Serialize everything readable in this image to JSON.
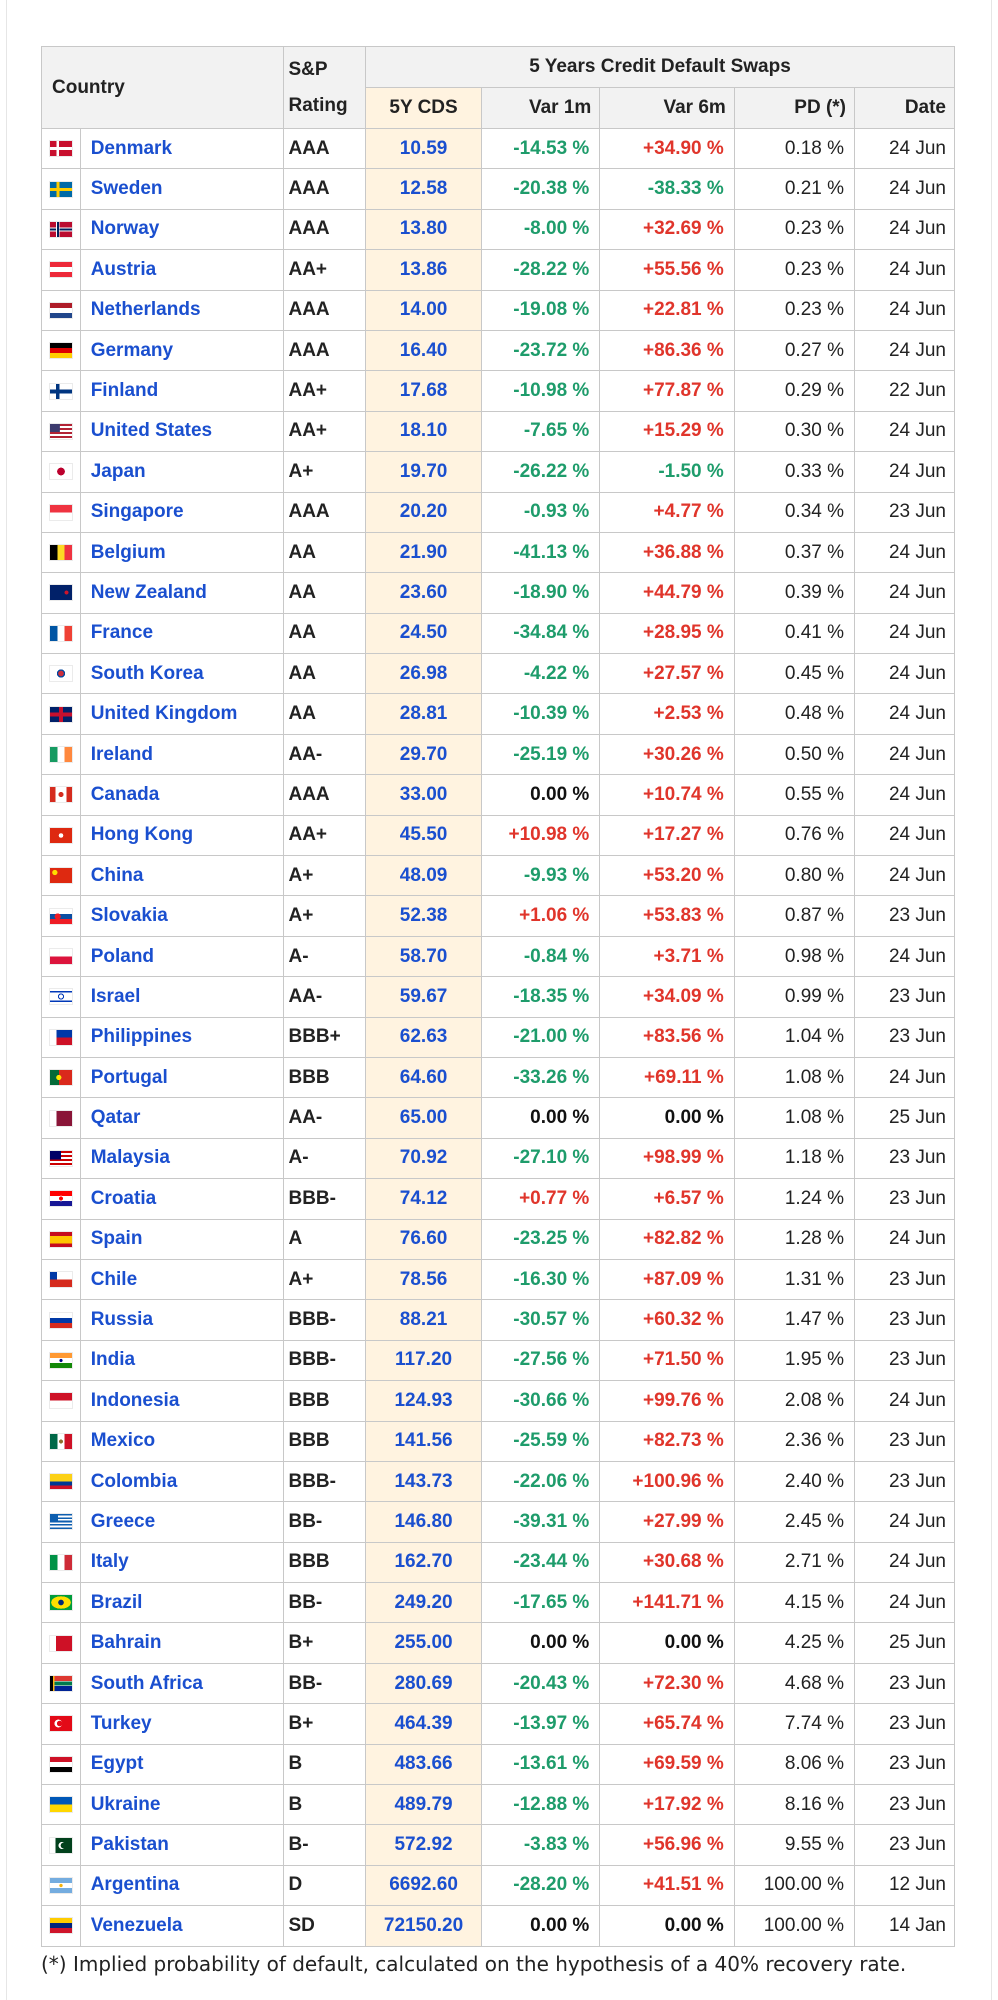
{
  "headers": {
    "country": "Country",
    "rating_line1": "S&P",
    "rating_line2": "Rating",
    "group": "5 Years Credit Default Swaps",
    "cds": "5Y CDS",
    "var1m": "Var 1m",
    "var6m": "Var 6m",
    "pd": "PD (*)",
    "date": "Date"
  },
  "rows": [
    {
      "country": "Denmark",
      "rating": "AAA",
      "cds": "10.59",
      "var1m": "-14.53 %",
      "var6m": "+34.90 %",
      "pd": "0.18 %",
      "date": "24 Jun",
      "flag": "linear-gradient(90deg,transparent 30%,#fff 30%,#fff 42%,transparent 42%),linear-gradient(#c8102e 40%,#fff 40%,#fff 60%,#c8102e 60%)"
    },
    {
      "country": "Sweden",
      "rating": "AAA",
      "cds": "12.58",
      "var1m": "-20.38 %",
      "var6m": "-38.33 %",
      "pd": "0.21 %",
      "date": "24 Jun",
      "flag": "linear-gradient(90deg,transparent 30%,#fecc00 30%,#fecc00 44%,transparent 44%),linear-gradient(#006aa7 40%,#fecc00 40%,#fecc00 60%,#006aa7 60%)"
    },
    {
      "country": "Norway",
      "rating": "AAA",
      "cds": "13.80",
      "var1m": "-8.00 %",
      "var6m": "+32.69 %",
      "pd": "0.23 %",
      "date": "24 Jun",
      "flag": "linear-gradient(90deg,transparent 28%,#fff 28%,#fff 32%,#00205b 32%,#00205b 40%,#fff 40%,#fff 44%,transparent 44%),linear-gradient(#ba0c2f 36%,#fff 36%,#fff 42%,#00205b 42%,#00205b 58%,#fff 58%,#fff 64%,#ba0c2f 64%)"
    },
    {
      "country": "Austria",
      "rating": "AA+",
      "cds": "13.86",
      "var1m": "-28.22 %",
      "var6m": "+55.56 %",
      "pd": "0.23 %",
      "date": "24 Jun",
      "flag": "linear-gradient(#ed2939 33%,#fff 33%,#fff 67%,#ed2939 67%)"
    },
    {
      "country": "Netherlands",
      "rating": "AAA",
      "cds": "14.00",
      "var1m": "-19.08 %",
      "var6m": "+22.81 %",
      "pd": "0.23 %",
      "date": "24 Jun",
      "flag": "linear-gradient(#ae1c28 33%,#fff 33%,#fff 67%,#21468b 67%)"
    },
    {
      "country": "Germany",
      "rating": "AAA",
      "cds": "16.40",
      "var1m": "-23.72 %",
      "var6m": "+86.36 %",
      "pd": "0.27 %",
      "date": "24 Jun",
      "flag": "linear-gradient(#000 33%,#dd0000 33%,#dd0000 67%,#ffce00 67%)"
    },
    {
      "country": "Finland",
      "rating": "AA+",
      "cds": "17.68",
      "var1m": "-10.98 %",
      "var6m": "+77.87 %",
      "pd": "0.29 %",
      "date": "22 Jun",
      "flag": "linear-gradient(90deg,transparent 28%,#003580 28%,#003580 44%,transparent 44%),linear-gradient(#fff 38%,#003580 38%,#003580 62%,#fff 62%)"
    },
    {
      "country": "United States",
      "rating": "AA+",
      "cds": "18.10",
      "var1m": "-7.65 %",
      "var6m": "+15.29 %",
      "pd": "0.30 %",
      "date": "24 Jun",
      "flag": "linear-gradient(#3c3b6e 0,#3c3b6e 100%) 0 0/45% 54% no-repeat,repeating-linear-gradient(#b22234 0,#b22234 2px,#fff 2px,#fff 4px)"
    },
    {
      "country": "Japan",
      "rating": "A+",
      "cds": "19.70",
      "var1m": "-26.22 %",
      "var6m": "-1.50 %",
      "pd": "0.33 %",
      "date": "24 Jun",
      "flag": "radial-gradient(circle,#bc002d 0,#bc002d 28%,#fff 30%)"
    },
    {
      "country": "Singapore",
      "rating": "AAA",
      "cds": "20.20",
      "var1m": "-0.93 %",
      "var6m": "+4.77 %",
      "pd": "0.34 %",
      "date": "23 Jun",
      "flag": "linear-gradient(#ef3340 50%,#fff 50%)"
    },
    {
      "country": "Belgium",
      "rating": "AA",
      "cds": "21.90",
      "var1m": "-41.13 %",
      "var6m": "+36.88 %",
      "pd": "0.37 %",
      "date": "24 Jun",
      "flag": "linear-gradient(90deg,#000 33%,#fdda24 33%,#fdda24 67%,#ef3340 67%)"
    },
    {
      "country": "New Zealand",
      "rating": "AA",
      "cds": "23.60",
      "var1m": "-18.90 %",
      "var6m": "+44.79 %",
      "pd": "0.39 %",
      "date": "24 Jun",
      "flag": "radial-gradient(circle at 75% 50%,#cc142b 0,#cc142b 10%,transparent 12%),linear-gradient(#012169,#012169)"
    },
    {
      "country": "France",
      "rating": "AA",
      "cds": "24.50",
      "var1m": "-34.84 %",
      "var6m": "+28.95 %",
      "pd": "0.41 %",
      "date": "24 Jun",
      "flag": "linear-gradient(90deg,#0055a4 33%,#fff 33%,#fff 67%,#ef4135 67%)"
    },
    {
      "country": "South Korea",
      "rating": "AA",
      "cds": "26.98",
      "var1m": "-4.22 %",
      "var6m": "+27.57 %",
      "pd": "0.45 %",
      "date": "24 Jun",
      "flag": "radial-gradient(circle,#cd2e3a 0,#cd2e3a 20%,#0047a0 22%,#0047a0 30%,#fff 32%)"
    },
    {
      "country": "United Kingdom",
      "rating": "AA",
      "cds": "28.81",
      "var1m": "-10.39 %",
      "var6m": "+2.53 %",
      "pd": "0.48 %",
      "date": "24 Jun",
      "flag": "linear-gradient(90deg,transparent 42%,#c8102e 42%,#c8102e 58%,transparent 58%),linear-gradient(#012169 38%,#c8102e 38%,#c8102e 62%,#012169 62%)"
    },
    {
      "country": "Ireland",
      "rating": "AA-",
      "cds": "29.70",
      "var1m": "-25.19 %",
      "var6m": "+30.26 %",
      "pd": "0.50 %",
      "date": "24 Jun",
      "flag": "linear-gradient(90deg,#169b62 33%,#fff 33%,#fff 67%,#ff883e 67%)"
    },
    {
      "country": "Canada",
      "rating": "AAA",
      "cds": "33.00",
      "var1m": "0.00 %",
      "var6m": "+10.74 %",
      "pd": "0.55 %",
      "date": "24 Jun",
      "flag": "radial-gradient(circle,#d52b1e 0,#d52b1e 18%,transparent 20%),linear-gradient(90deg,#d52b1e 25%,#fff 25%,#fff 75%,#d52b1e 75%)"
    },
    {
      "country": "Hong Kong",
      "rating": "AA+",
      "cds": "45.50",
      "var1m": "+10.98 %",
      "var6m": "+17.27 %",
      "pd": "0.76 %",
      "date": "24 Jun",
      "flag": "radial-gradient(circle,#fff 0,#fff 16%,#de2910 18%)"
    },
    {
      "country": "China",
      "rating": "A+",
      "cds": "48.09",
      "var1m": "-9.93 %",
      "var6m": "+53.20 %",
      "pd": "0.80 %",
      "date": "24 Jun",
      "flag": "radial-gradient(circle at 22% 30%,#ffde00 0,#ffde00 12%,#de2910 14%)"
    },
    {
      "country": "Slovakia",
      "rating": "A+",
      "cds": "52.38",
      "var1m": "+1.06 %",
      "var6m": "+53.83 %",
      "pd": "0.87 %",
      "date": "23 Jun",
      "flag": "radial-gradient(circle at 35% 50%,#ee1c25 0,#ee1c25 18%,transparent 20%),linear-gradient(#fff 33%,#0b4ea2 33%,#0b4ea2 67%,#ee1c25 67%)"
    },
    {
      "country": "Poland",
      "rating": "A-",
      "cds": "58.70",
      "var1m": "-0.84 %",
      "var6m": "+3.71 %",
      "pd": "0.98 %",
      "date": "24 Jun",
      "flag": "linear-gradient(#fff 50%,#dc143c 50%)"
    },
    {
      "country": "Israel",
      "rating": "AA-",
      "cds": "59.67",
      "var1m": "-18.35 %",
      "var6m": "+34.09 %",
      "pd": "0.99 %",
      "date": "23 Jun",
      "flag": "radial-gradient(circle,transparent 0,transparent 14%,#0038b8 16%,#0038b8 22%,transparent 24%),linear-gradient(#fff 12%,#0038b8 12%,#0038b8 24%,#fff 24%,#fff 76%,#0038b8 76%,#0038b8 88%,#fff 88%)"
    },
    {
      "country": "Philippines",
      "rating": "BBB+",
      "cds": "62.63",
      "var1m": "-21.00 %",
      "var6m": "+83.56 %",
      "pd": "1.04 %",
      "date": "23 Jun",
      "flag": "linear-gradient(90deg,#fff 0,#fff 30%,transparent 30%),linear-gradient(#0038a8 50%,#ce1126 50%)"
    },
    {
      "country": "Portugal",
      "rating": "BBB",
      "cds": "64.60",
      "var1m": "-33.26 %",
      "var6m": "+69.11 %",
      "pd": "1.08 %",
      "date": "24 Jun",
      "flag": "radial-gradient(circle at 40% 50%,#ffe900 0,#ffe900 16%,transparent 18%),linear-gradient(90deg,#046a38 40%,#da291c 40%)"
    },
    {
      "country": "Qatar",
      "rating": "AA-",
      "cds": "65.00",
      "var1m": "0.00 %",
      "var6m": "0.00 %",
      "pd": "1.08 %",
      "date": "25 Jun",
      "flag": "linear-gradient(90deg,#fff 30%,#8a1538 30%)"
    },
    {
      "country": "Malaysia",
      "rating": "A-",
      "cds": "70.92",
      "var1m": "-27.10 %",
      "var6m": "+98.99 %",
      "pd": "1.18 %",
      "date": "23 Jun",
      "flag": "linear-gradient(#010066 0,#010066 100%) 0 0/50% 57% no-repeat,repeating-linear-gradient(#cc0001 0,#cc0001 2px,#fff 2px,#fff 4px)"
    },
    {
      "country": "Croatia",
      "rating": "BBB-",
      "cds": "74.12",
      "var1m": "+0.77 %",
      "var6m": "+6.57 %",
      "pd": "1.24 %",
      "date": "23 Jun",
      "flag": "radial-gradient(circle,#ff0000 0,#ff0000 14%,#fff 16%,#fff 20%,transparent 22%),linear-gradient(#ff0000 33%,#fff 33%,#fff 67%,#171796 67%)"
    },
    {
      "country": "Spain",
      "rating": "A",
      "cds": "76.60",
      "var1m": "-23.25 %",
      "var6m": "+82.82 %",
      "pd": "1.28 %",
      "date": "24 Jun",
      "flag": "linear-gradient(#c60b1e 25%,#ffc400 25%,#ffc400 75%,#c60b1e 75%)"
    },
    {
      "country": "Chile",
      "rating": "A+",
      "cds": "78.56",
      "var1m": "-16.30 %",
      "var6m": "+87.09 %",
      "pd": "1.31 %",
      "date": "23 Jun",
      "flag": "linear-gradient(#0039a6 0,#0039a6 100%) 0 0/34% 50% no-repeat,linear-gradient(#fff 50%,#d52b1e 50%)"
    },
    {
      "country": "Russia",
      "rating": "BBB-",
      "cds": "88.21",
      "var1m": "-30.57 %",
      "var6m": "+60.32 %",
      "pd": "1.47 %",
      "date": "23 Jun",
      "flag": "linear-gradient(#fff 33%,#0039a6 33%,#0039a6 67%,#d52b1e 67%)"
    },
    {
      "country": "India",
      "rating": "BBB-",
      "cds": "117.20",
      "var1m": "-27.56 %",
      "var6m": "+71.50 %",
      "pd": "1.95 %",
      "date": "23 Jun",
      "flag": "radial-gradient(circle,#000080 0,#000080 10%,transparent 14%),linear-gradient(#ff9933 33%,#fff 33%,#fff 67%,#138808 67%)"
    },
    {
      "country": "Indonesia",
      "rating": "BBB",
      "cds": "124.93",
      "var1m": "-30.66 %",
      "var6m": "+99.76 %",
      "pd": "2.08 %",
      "date": "24 Jun",
      "flag": "linear-gradient(#ce1126 50%,#fff 50%)"
    },
    {
      "country": "Mexico",
      "rating": "BBB",
      "cds": "141.56",
      "var1m": "-25.59 %",
      "var6m": "+82.73 %",
      "pd": "2.36 %",
      "date": "23 Jun",
      "flag": "radial-gradient(circle,#8c6d2a 0,#8c6d2a 14%,transparent 16%),linear-gradient(90deg,#006847 33%,#fff 33%,#fff 67%,#ce1126 67%)"
    },
    {
      "country": "Colombia",
      "rating": "BBB-",
      "cds": "143.73",
      "var1m": "-22.06 %",
      "var6m": "+100.96 %",
      "pd": "2.40 %",
      "date": "23 Jun",
      "flag": "linear-gradient(#fcd116 50%,#003893 50%,#003893 75%,#ce1126 75%)"
    },
    {
      "country": "Greece",
      "rating": "BB-",
      "cds": "146.80",
      "var1m": "-39.31 %",
      "var6m": "+27.99 %",
      "pd": "2.45 %",
      "date": "24 Jun",
      "flag": "linear-gradient(#0d5eaf 0,#0d5eaf 100%) 0 0/38% 55% no-repeat,repeating-linear-gradient(#0d5eaf 0,#0d5eaf 1.67px,#fff 1.67px,#fff 3.33px)"
    },
    {
      "country": "Italy",
      "rating": "BBB",
      "cds": "162.70",
      "var1m": "-23.44 %",
      "var6m": "+30.68 %",
      "pd": "2.71 %",
      "date": "24 Jun",
      "flag": "linear-gradient(90deg,#009246 33%,#fff 33%,#fff 67%,#ce2b37 67%)"
    },
    {
      "country": "Brazil",
      "rating": "BB-",
      "cds": "249.20",
      "var1m": "-17.65 %",
      "var6m": "+141.71 %",
      "pd": "4.15 %",
      "date": "24 Jun",
      "flag": "radial-gradient(circle,#002776 0,#002776 20%,transparent 22%),radial-gradient(ellipse 45% 42%,#ffdf00 0,#ffdf00 98%,transparent 100%),linear-gradient(#009c3b,#009c3b)"
    },
    {
      "country": "Bahrain",
      "rating": "B+",
      "cds": "255.00",
      "var1m": "0.00 %",
      "var6m": "0.00 %",
      "pd": "4.25 %",
      "date": "25 Jun",
      "flag": "linear-gradient(90deg,#fff 28%,#ce1126 28%)"
    },
    {
      "country": "South Africa",
      "rating": "BB-",
      "cds": "280.69",
      "var1m": "-20.43 %",
      "var6m": "+72.30 %",
      "pd": "4.68 %",
      "date": "23 Jun",
      "flag": "linear-gradient(90deg,#000 0,#000 14%,#ffb612 14%,#ffb612 20%,transparent 20%),linear-gradient(#de3831 33%,#fff 33%,#fff 38%,#007a4d 38%,#007a4d 62%,#fff 62%,#fff 67%,#002395 67%)"
    },
    {
      "country": "Turkey",
      "rating": "B+",
      "cds": "464.39",
      "var1m": "-13.97 %",
      "var6m": "+65.74 %",
      "pd": "7.74 %",
      "date": "23 Jun",
      "flag": "radial-gradient(circle at 44% 50%,#e30a17 0,#e30a17 18%,transparent 20%),radial-gradient(circle at 38% 50%,#fff 0,#fff 24%,#e30a17 26%)"
    },
    {
      "country": "Egypt",
      "rating": "B",
      "cds": "483.66",
      "var1m": "-13.61 %",
      "var6m": "+69.59 %",
      "pd": "8.06 %",
      "date": "23 Jun",
      "flag": "linear-gradient(#ce1126 33%,#fff 33%,#fff 67%,#000 67%)"
    },
    {
      "country": "Ukraine",
      "rating": "B",
      "cds": "489.79",
      "var1m": "-12.88 %",
      "var6m": "+17.92 %",
      "pd": "8.16 %",
      "date": "23 Jun",
      "flag": "linear-gradient(#0057b7 50%,#ffd700 50%)"
    },
    {
      "country": "Pakistan",
      "rating": "B-",
      "cds": "572.92",
      "var1m": "-3.83 %",
      "var6m": "+56.96 %",
      "pd": "9.55 %",
      "date": "23 Jun",
      "flag": "radial-gradient(circle at 62% 50%,#01411c 0,#01411c 18%,transparent 20%),radial-gradient(circle at 55% 50%,#fff 0,#fff 24%,transparent 26%),linear-gradient(90deg,#fff 25%,#01411c 25%)"
    },
    {
      "country": "Argentina",
      "rating": "D",
      "cds": "6692.60",
      "var1m": "-28.20 %",
      "var6m": "+41.51 %",
      "pd": "100.00 %",
      "date": "12 Jun",
      "flag": "radial-gradient(circle,#f6b40e 0,#f6b40e 12%,transparent 14%),linear-gradient(#74acdf 33%,#fff 33%,#fff 67%,#74acdf 67%)"
    },
    {
      "country": "Venezuela",
      "rating": "SD",
      "cds": "72150.20",
      "var1m": "0.00 %",
      "var6m": "0.00 %",
      "pd": "100.00 %",
      "date": "14 Jan",
      "flag": "linear-gradient(#ffcc00 33%,#00247d 33%,#00247d 67%,#cf142b 67%)"
    }
  ],
  "footnote": "(*) Implied probability of default, calculated on the hypothesis of a 40% recovery rate.",
  "colors": {
    "negative": "#1e9c6b",
    "positive": "#e0352b",
    "link": "#1a4fcf",
    "cds_bg": "#fff3e0",
    "header_bg": "#f2f2f2"
  }
}
